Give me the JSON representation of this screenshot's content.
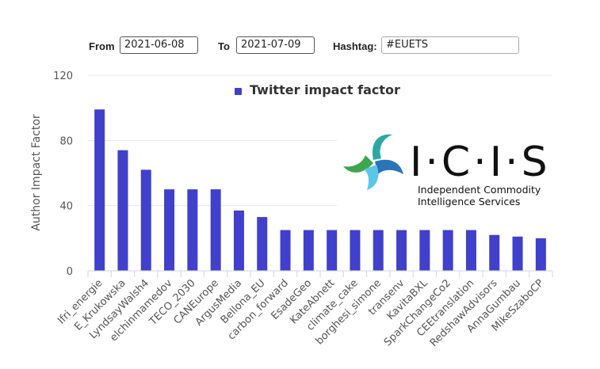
{
  "controls": {
    "from_label": "From",
    "from_value": "2021-06-08",
    "to_label": "To",
    "to_value": "2021-07-09",
    "hashtag_label": "Hashtag:",
    "hashtag_value": "#EUETS"
  },
  "logo": {
    "wordmark": "I·C·I·S",
    "line1": "Independent Commodity",
    "line2": "Intelligence Services"
  },
  "chart_data": {
    "type": "bar",
    "title": "",
    "legend": "Twitter impact factor",
    "legend_position": "top-center",
    "ylabel": "Author Impact Factor",
    "xlabel": "",
    "ylim": [
      0,
      120
    ],
    "yticks": [
      0,
      40,
      80,
      120
    ],
    "grid": true,
    "bar_color": "#4040cc",
    "categories": [
      "Ifri_energie",
      "E_Krukowska",
      "LyndsayWalsh4",
      "elchinmamedov",
      "TECO_2030",
      "CANEurope",
      "ArgusMedia",
      "Bellona_EU",
      "carbon_forward",
      "EsadeGeo",
      "KateAbnett",
      "climate_cake",
      "borghesi_simone",
      "transenv",
      "KavitaBXL",
      "SparkChangeCo2",
      "CEEtranslation",
      "RedshawAdvisors",
      "AnnaGumbau",
      "MikeSzaboCP"
    ],
    "values": [
      99,
      74,
      62,
      50,
      50,
      50,
      37,
      33,
      25,
      25,
      25,
      25,
      25,
      25,
      25,
      25,
      25,
      22,
      21,
      20
    ]
  }
}
